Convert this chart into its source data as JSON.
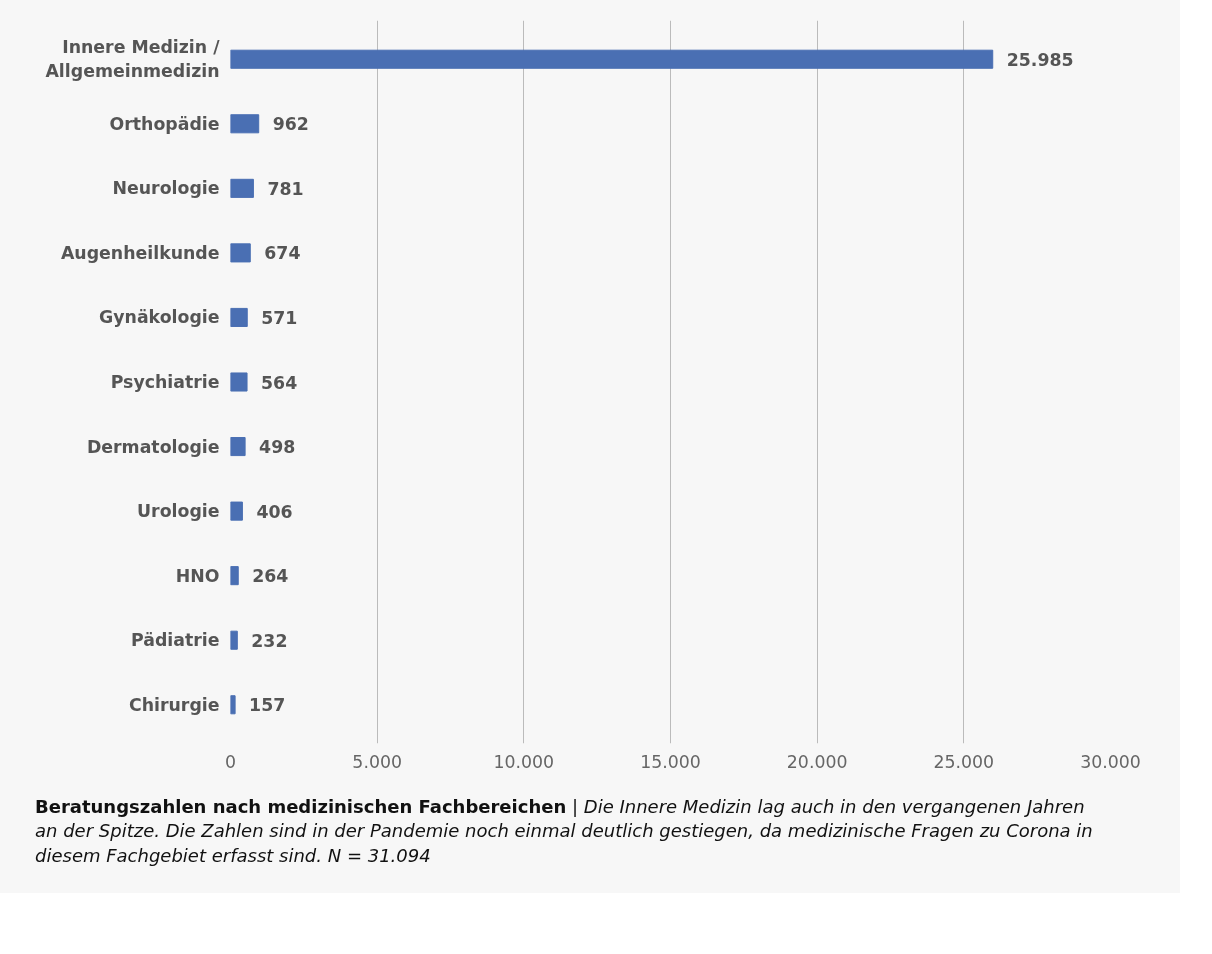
{
  "chart_data": {
    "type": "bar",
    "orientation": "horizontal",
    "title": "Beratungszahlen nach medizinischen Fachbereichen",
    "annotations": [
      "| Die Innere Medizin lag auch in den vergangenen Jahren an der Spitze. Die Zahlen sind in der Pandemie noch einmal deutlich gestiegen, da medizinische Fragen zu Corona in diesem Fachgebiet erfasst sind. N = 31.094"
    ],
    "categories": [
      "Innere Medizin / Allgemeinmedizin",
      "Orthopädie",
      "Neurologie",
      "Augenheilkunde",
      "Gynäkologie",
      "Psychiatrie",
      "Dermatologie",
      "Urologie",
      "HNO",
      "Pädiatrie",
      "Chirurgie"
    ],
    "values": [
      25985,
      962,
      781,
      674,
      571,
      564,
      498,
      406,
      264,
      232,
      157
    ],
    "value_labels": [
      "25.985",
      "962",
      "781",
      "674",
      "571",
      "564",
      "498",
      "406",
      "264",
      "232",
      "157"
    ],
    "color": "#4a6fb3",
    "xlim": [
      0,
      30000
    ],
    "xticks": [
      0,
      {
        "value": 5000,
        "label": "5.000"
      },
      {
        "value": 10000,
        "label": "10.000"
      },
      {
        "value": 15000,
        "label": "15.000"
      },
      {
        "value": 20000,
        "label": "20.000"
      },
      {
        "value": 25000,
        "label": "25.000"
      },
      {
        "value": 30000,
        "label": "30.000"
      }
    ],
    "grid": "x"
  }
}
